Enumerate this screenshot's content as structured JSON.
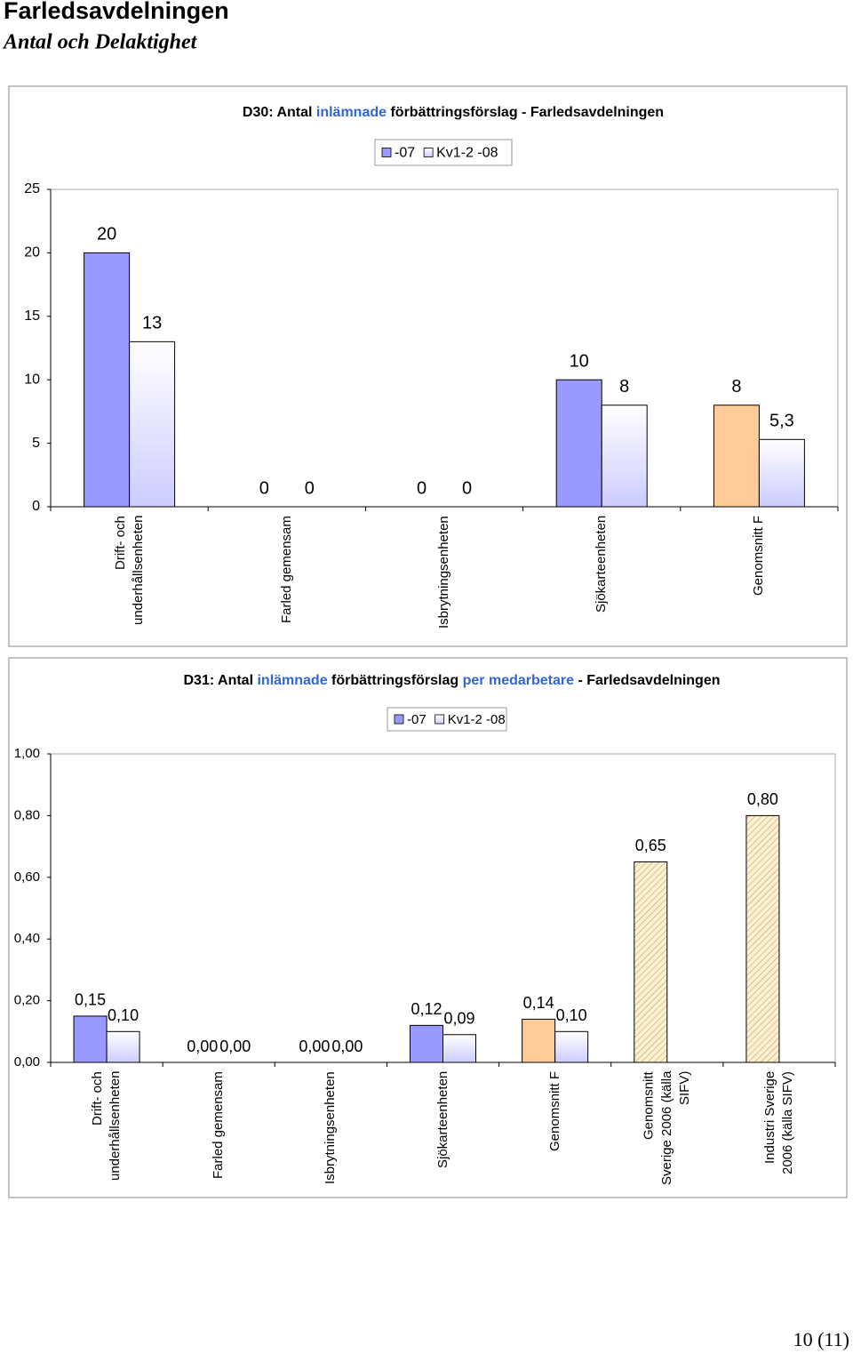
{
  "header": {
    "title": "Farledsavdelningen",
    "subtitle": "Antal och Delaktighet"
  },
  "chart_data": [
    {
      "type": "bar",
      "title": [
        "D30: Antal ",
        "inlämnade",
        " förbättringsförslag - Farledsavdelningen"
      ],
      "categories": [
        "Drift- och underhållsenheten",
        "Farled gemensam",
        "Isbrytningsenheten",
        "Sjökarteenheten",
        "Genomsnitt F"
      ],
      "series": [
        {
          "name": "-07",
          "color": "#9999ff",
          "colors": [
            "#9999ff",
            "#9999ff",
            "#9999ff",
            "#9999ff",
            "#ffcc99"
          ],
          "values": [
            20,
            0,
            0,
            10,
            8
          ]
        },
        {
          "name": "Kv1-2 -08",
          "color": "#ccccff",
          "values": [
            13,
            0,
            0,
            8,
            5.3
          ],
          "value_labels": [
            "13",
            "0",
            "0",
            "8",
            "5,3"
          ]
        }
      ],
      "ylim": [
        0,
        25
      ],
      "yticks": [
        0,
        5,
        10,
        15,
        20,
        25
      ],
      "grid": false,
      "legend": "top"
    },
    {
      "type": "bar",
      "title": [
        "D31: Antal ",
        "inlämnade",
        " förbättringsförslag ",
        "per medarbetare",
        " - Farledsavdelningen"
      ],
      "categories": [
        "Drift- och underhållsenheten",
        "Farled gemensam",
        "Isbrytningsenheten",
        "Sjökarteenheten",
        "Genomsnitt F",
        "Genomsnitt Sverige 2006 (källa SIFV)",
        "Industri Sverige 2006 (källa SIFV)"
      ],
      "series": [
        {
          "name": "-07",
          "color": "#9999ff",
          "colors": [
            "#9999ff",
            "#9999ff",
            "#9999ff",
            "#9999ff",
            "#ffcc99",
            "#fff0c8",
            "#fff0c8"
          ],
          "hatched": [
            false,
            false,
            false,
            false,
            false,
            true,
            true
          ],
          "values": [
            0.15,
            0,
            0,
            0.12,
            0.14,
            0.65,
            0.8
          ],
          "value_labels": [
            "0,15",
            "0,00",
            "0,00",
            "0,12",
            "0,14",
            "0,65",
            "0,80"
          ]
        },
        {
          "name": "Kv1-2 -08",
          "color": "#ccccff",
          "values": [
            0.1,
            0,
            0,
            0.09,
            0.1,
            null,
            null
          ],
          "value_labels": [
            "0,10",
            "0,00",
            "0,00",
            "0,09",
            "0,10",
            null,
            null
          ]
        }
      ],
      "ylim": [
        0,
        1
      ],
      "yticks": [
        {
          "value": 0,
          "label": "0,00"
        },
        {
          "value": 0.2,
          "label": "0,20"
        },
        {
          "value": 0.4,
          "label": "0,40"
        },
        {
          "value": 0.6,
          "label": "0,60"
        },
        {
          "value": 0.8,
          "label": "0,80"
        },
        {
          "value": 1,
          "label": "1,00"
        }
      ],
      "grid": false,
      "legend": "top"
    }
  ],
  "footer": {
    "page": "10 (11)"
  }
}
